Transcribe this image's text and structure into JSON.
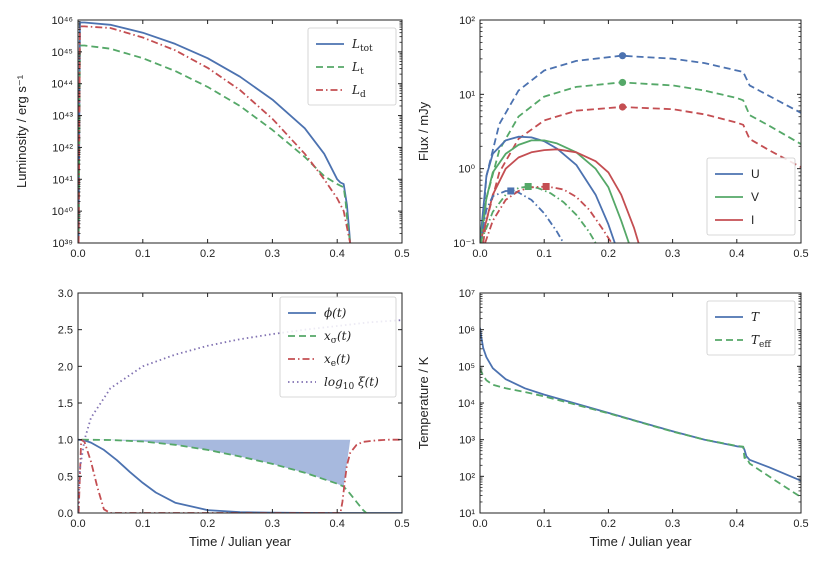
{
  "figure": {
    "panels": 4
  },
  "colors": {
    "blue": "#4c72b0",
    "green": "#55a868",
    "red": "#c44e52",
    "purple": "#8172b2",
    "fill": "#a7b9de"
  },
  "chart_data": [
    {
      "id": "tl",
      "type": "line",
      "ylog": true,
      "xlabel": "",
      "ylabel": "Luminosity / erg s⁻¹",
      "xlim": [
        0,
        0.5
      ],
      "ylim": [
        39,
        46
      ],
      "xticks": [
        0.0,
        0.1,
        0.2,
        0.3,
        0.4,
        0.5
      ],
      "xtick_labels": [
        "0.0",
        "0.1",
        "0.2",
        "0.3",
        "0.4",
        "0.5"
      ],
      "yticks": [
        39,
        40,
        41,
        42,
        43,
        44,
        45,
        46
      ],
      "ytick_labels": [
        "10³⁹",
        "10⁴⁰",
        "10⁴¹",
        "10⁴²",
        "10⁴³",
        "10⁴⁴",
        "10⁴⁵",
        "10⁴⁶"
      ],
      "legend": {
        "position": "top-right",
        "entries": [
          {
            "key": "Ltot",
            "label": "L",
            "sub": "tot",
            "color": "#4c72b0",
            "dash": "solid"
          },
          {
            "key": "Lt",
            "label": "L",
            "sub": "t",
            "color": "#55a868",
            "dash": "dashed"
          },
          {
            "key": "Ld",
            "label": "L",
            "sub": "d",
            "color": "#c44e52",
            "dash": "dashdot"
          }
        ]
      },
      "series": [
        {
          "name": "Ltot",
          "color": "#4c72b0",
          "dash": "solid",
          "x": [
            0.001,
            0.003,
            0.01,
            0.05,
            0.1,
            0.15,
            0.2,
            0.25,
            0.3,
            0.35,
            0.38,
            0.4,
            0.405,
            0.41,
            0.415,
            0.418,
            0.42
          ],
          "y": [
            39,
            45.92,
            45.92,
            45.85,
            45.6,
            45.25,
            44.8,
            44.22,
            43.5,
            42.6,
            41.8,
            41.0,
            40.9,
            40.85,
            40.2,
            39.5,
            39
          ]
        },
        {
          "name": "Lt",
          "color": "#55a868",
          "dash": "dashed",
          "x": [
            0.001,
            0.003,
            0.01,
            0.05,
            0.1,
            0.15,
            0.2,
            0.25,
            0.3,
            0.35,
            0.38,
            0.4,
            0.405,
            0.41,
            0.413,
            0.416,
            0.42
          ],
          "y": [
            39,
            45.2,
            45.2,
            45.1,
            44.8,
            44.4,
            43.9,
            43.3,
            42.55,
            41.7,
            41.1,
            40.85,
            40.8,
            40.75,
            40.3,
            39.6,
            39
          ]
        },
        {
          "name": "Ld",
          "color": "#c44e52",
          "dash": "dashdot",
          "x": [
            0.001,
            0.003,
            0.01,
            0.05,
            0.1,
            0.15,
            0.2,
            0.25,
            0.3,
            0.35,
            0.38,
            0.4,
            0.41,
            0.415,
            0.42
          ],
          "y": [
            39,
            45.8,
            45.8,
            45.75,
            45.45,
            45.05,
            44.5,
            43.8,
            42.9,
            41.8,
            41.0,
            40.4,
            40.0,
            39.5,
            39
          ]
        }
      ]
    },
    {
      "id": "tr",
      "type": "line",
      "ylog": true,
      "xlabel": "",
      "ylabel": "Flux / mJy",
      "xlim": [
        0,
        0.5
      ],
      "ylim": [
        -1,
        2
      ],
      "xticks": [
        0.0,
        0.1,
        0.2,
        0.3,
        0.4,
        0.5
      ],
      "xtick_labels": [
        "0.0",
        "0.1",
        "0.2",
        "0.3",
        "0.4",
        "0.5"
      ],
      "yticks": [
        -1,
        0,
        1,
        2
      ],
      "ytick_labels": [
        "10⁻¹",
        "10⁰",
        "10¹",
        "10²"
      ],
      "legend": {
        "position": "lower-right",
        "entries": [
          {
            "key": "U",
            "label": "U",
            "color": "#4c72b0",
            "dash": "solid"
          },
          {
            "key": "V",
            "label": "V",
            "color": "#55a868",
            "dash": "solid"
          },
          {
            "key": "I",
            "label": "I",
            "color": "#c44e52",
            "dash": "solid"
          }
        ]
      },
      "series": [
        {
          "name": "U-dashed",
          "color": "#4c72b0",
          "dash": "dashed",
          "x": [
            0.002,
            0.01,
            0.03,
            0.06,
            0.1,
            0.15,
            0.22,
            0.3,
            0.35,
            0.4,
            0.41,
            0.42,
            0.45,
            0.5
          ],
          "y": [
            -1,
            -0.1,
            0.6,
            1.05,
            1.32,
            1.45,
            1.52,
            1.48,
            1.42,
            1.32,
            1.3,
            1.12,
            0.98,
            0.75
          ]
        },
        {
          "name": "V-dashed",
          "color": "#55a868",
          "dash": "dashed",
          "x": [
            0.002,
            0.01,
            0.03,
            0.06,
            0.1,
            0.15,
            0.22,
            0.3,
            0.35,
            0.4,
            0.41,
            0.42,
            0.45,
            0.5
          ],
          "y": [
            -1,
            -0.4,
            0.25,
            0.7,
            0.97,
            1.1,
            1.16,
            1.12,
            1.05,
            0.95,
            0.92,
            0.72,
            0.58,
            0.33
          ]
        },
        {
          "name": "I-dashed",
          "color": "#c44e52",
          "dash": "dashed",
          "x": [
            0.005,
            0.01,
            0.03,
            0.06,
            0.1,
            0.15,
            0.22,
            0.3,
            0.35,
            0.4,
            0.41,
            0.42,
            0.45,
            0.5
          ],
          "y": [
            -1,
            -0.7,
            -0.05,
            0.4,
            0.65,
            0.78,
            0.83,
            0.8,
            0.73,
            0.62,
            0.59,
            0.4,
            0.25,
            0.02
          ]
        },
        {
          "name": "U-solid",
          "color": "#4c72b0",
          "dash": "solid",
          "x": [
            0.0,
            0.01,
            0.02,
            0.04,
            0.06,
            0.08,
            0.1,
            0.12,
            0.15,
            0.18,
            0.2,
            0.21
          ],
          "y": [
            -1,
            -0.1,
            0.2,
            0.38,
            0.43,
            0.42,
            0.37,
            0.27,
            0.05,
            -0.35,
            -0.75,
            -1
          ]
        },
        {
          "name": "V-solid",
          "color": "#55a868",
          "dash": "solid",
          "x": [
            0.0,
            0.01,
            0.02,
            0.04,
            0.06,
            0.08,
            0.1,
            0.12,
            0.15,
            0.18,
            0.2,
            0.22,
            0.232
          ],
          "y": [
            -1,
            -0.4,
            -0.05,
            0.2,
            0.32,
            0.38,
            0.38,
            0.34,
            0.22,
            0.0,
            -0.25,
            -0.7,
            -1
          ]
        },
        {
          "name": "I-solid",
          "color": "#c44e52",
          "dash": "solid",
          "x": [
            0.0,
            0.01,
            0.02,
            0.04,
            0.06,
            0.08,
            0.1,
            0.12,
            0.15,
            0.18,
            0.2,
            0.22,
            0.24,
            0.247
          ],
          "y": [
            -1,
            -0.7,
            -0.35,
            0.0,
            0.15,
            0.22,
            0.25,
            0.26,
            0.22,
            0.1,
            -0.05,
            -0.35,
            -0.8,
            -1
          ]
        },
        {
          "name": "U-dashdot",
          "color": "#4c72b0",
          "dash": "dashdot",
          "x": [
            0.0,
            0.01,
            0.02,
            0.04,
            0.05,
            0.06,
            0.08,
            0.1,
            0.12,
            0.13
          ],
          "y": [
            -1,
            -0.55,
            -0.37,
            -0.3,
            -0.3,
            -0.32,
            -0.42,
            -0.6,
            -0.85,
            -1
          ]
        },
        {
          "name": "V-dashdot",
          "color": "#55a868",
          "dash": "dashdot",
          "x": [
            0.0,
            0.01,
            0.02,
            0.04,
            0.06,
            0.075,
            0.09,
            0.11,
            0.13,
            0.15,
            0.17,
            0.18
          ],
          "y": [
            -1,
            -0.8,
            -0.58,
            -0.35,
            -0.26,
            -0.24,
            -0.26,
            -0.33,
            -0.45,
            -0.62,
            -0.85,
            -1
          ]
        },
        {
          "name": "I-dashdot",
          "color": "#c44e52",
          "dash": "dashdot",
          "x": [
            0.008,
            0.02,
            0.04,
            0.06,
            0.08,
            0.105,
            0.13,
            0.15,
            0.17,
            0.19,
            0.205
          ],
          "y": [
            -1,
            -0.7,
            -0.42,
            -0.3,
            -0.25,
            -0.24,
            -0.28,
            -0.38,
            -0.55,
            -0.8,
            -1
          ]
        }
      ],
      "markers": [
        {
          "x": 0.222,
          "y": 1.52,
          "shape": "circle",
          "color": "#4c72b0"
        },
        {
          "x": 0.222,
          "y": 1.16,
          "shape": "circle",
          "color": "#55a868"
        },
        {
          "x": 0.222,
          "y": 0.83,
          "shape": "circle",
          "color": "#c44e52"
        },
        {
          "x": 0.048,
          "y": -0.3,
          "shape": "square",
          "color": "#4c72b0"
        },
        {
          "x": 0.075,
          "y": -0.24,
          "shape": "square",
          "color": "#55a868"
        },
        {
          "x": 0.103,
          "y": -0.24,
          "shape": "square",
          "color": "#c44e52"
        }
      ]
    },
    {
      "id": "bl",
      "type": "line",
      "ylog": false,
      "xlabel": "Time / Julian year",
      "ylabel": "",
      "xlim": [
        0,
        0.5
      ],
      "ylim": [
        0,
        3.0
      ],
      "xticks": [
        0.0,
        0.1,
        0.2,
        0.3,
        0.4,
        0.5
      ],
      "xtick_labels": [
        "0.0",
        "0.1",
        "0.2",
        "0.3",
        "0.4",
        "0.5"
      ],
      "yticks": [
        0.0,
        0.5,
        1.0,
        1.5,
        2.0,
        2.5,
        3.0
      ],
      "ytick_labels": [
        "0.0",
        "0.5",
        "1.0",
        "1.5",
        "2.0",
        "2.5",
        "3.0"
      ],
      "legend": {
        "position": "top-right",
        "entries": [
          {
            "key": "phi",
            "label": "ϕ(t)",
            "color": "#4c72b0",
            "dash": "solid"
          },
          {
            "key": "xs",
            "label": "x",
            "sub": "σ",
            "after": "(t)",
            "color": "#55a868",
            "dash": "dashed"
          },
          {
            "key": "xe",
            "label": "x",
            "sub": "e",
            "after": "(t)",
            "color": "#c44e52",
            "dash": "dashdot"
          },
          {
            "key": "logxi",
            "label": "log",
            "sub": "10",
            "after": " ξ(t)",
            "color": "#8172b2",
            "dash": "dotted"
          }
        ]
      },
      "fill": {
        "x": [
          0.006,
          0.05,
          0.1,
          0.15,
          0.2,
          0.25,
          0.3,
          0.35,
          0.38,
          0.4,
          0.41,
          0.42,
          0.44,
          0.46,
          0.48,
          0.5
        ],
        "y_low": [
          1.0,
          0.995,
          0.975,
          0.93,
          0.86,
          0.77,
          0.67,
          0.55,
          0.46,
          0.4,
          0.36,
          1.0,
          1.0,
          1.0,
          1.0,
          1.0
        ],
        "y_high": 1.0,
        "color": "#a7b9de"
      },
      "series": [
        {
          "name": "phi",
          "color": "#4c72b0",
          "dash": "solid",
          "x": [
            0.0,
            0.01,
            0.02,
            0.04,
            0.06,
            0.08,
            0.1,
            0.12,
            0.15,
            0.2,
            0.25,
            0.3,
            0.35,
            0.4,
            0.45,
            0.5
          ],
          "y": [
            1.0,
            0.99,
            0.96,
            0.86,
            0.72,
            0.56,
            0.41,
            0.28,
            0.14,
            0.04,
            0.012,
            0.004,
            0.001,
            0.0,
            0.0,
            0.0
          ]
        },
        {
          "name": "xs",
          "color": "#55a868",
          "dash": "dashed",
          "x": [
            0.006,
            0.05,
            0.1,
            0.15,
            0.2,
            0.25,
            0.3,
            0.35,
            0.38,
            0.4,
            0.41,
            0.42,
            0.43,
            0.44,
            0.445
          ],
          "y": [
            1.0,
            0.995,
            0.975,
            0.93,
            0.86,
            0.77,
            0.67,
            0.55,
            0.46,
            0.4,
            0.36,
            0.26,
            0.15,
            0.04,
            0.0
          ]
        },
        {
          "name": "xe",
          "color": "#c44e52",
          "dash": "dashdot",
          "x": [
            0.001,
            0.005,
            0.01,
            0.02,
            0.03,
            0.04,
            0.05,
            0.405,
            0.408,
            0.412,
            0.415,
            0.42,
            0.43,
            0.44,
            0.46,
            0.48,
            0.5
          ],
          "y": [
            0.0,
            1.0,
            0.97,
            0.7,
            0.35,
            0.05,
            0.0,
            0.0,
            0.15,
            0.45,
            0.65,
            0.82,
            0.93,
            0.97,
            0.99,
            1.0,
            1.0
          ]
        },
        {
          "name": "logxi",
          "color": "#8172b2",
          "dash": "dotted",
          "x": [
            0.0,
            0.003,
            0.01,
            0.02,
            0.05,
            0.1,
            0.15,
            0.2,
            0.25,
            0.3,
            0.35,
            0.4,
            0.45,
            0.5
          ],
          "y": [
            0.0,
            0.6,
            1.0,
            1.3,
            1.7,
            2.0,
            2.16,
            2.28,
            2.37,
            2.44,
            2.5,
            2.55,
            2.6,
            2.63
          ]
        }
      ]
    },
    {
      "id": "br",
      "type": "line",
      "ylog": true,
      "xlabel": "Time / Julian year",
      "ylabel": "Temperature / K",
      "xlim": [
        0,
        0.5
      ],
      "ylim": [
        1,
        7
      ],
      "xticks": [
        0.0,
        0.1,
        0.2,
        0.3,
        0.4,
        0.5
      ],
      "xtick_labels": [
        "0.0",
        "0.1",
        "0.2",
        "0.3",
        "0.4",
        "0.5"
      ],
      "yticks": [
        1,
        2,
        3,
        4,
        5,
        6,
        7
      ],
      "ytick_labels": [
        "10¹",
        "10²",
        "10³",
        "10⁴",
        "10⁵",
        "10⁶",
        "10⁷"
      ],
      "legend": {
        "position": "top-right",
        "entries": [
          {
            "key": "T",
            "label": "T",
            "color": "#4c72b0",
            "dash": "solid"
          },
          {
            "key": "Teff",
            "label": "T",
            "sub": "eff",
            "color": "#55a868",
            "dash": "dashed"
          }
        ]
      },
      "series": [
        {
          "name": "T",
          "color": "#4c72b0",
          "dash": "solid",
          "x": [
            0.0,
            0.002,
            0.005,
            0.01,
            0.02,
            0.04,
            0.07,
            0.1,
            0.15,
            0.2,
            0.25,
            0.3,
            0.35,
            0.4,
            0.41,
            0.412,
            0.415,
            0.42,
            0.45,
            0.5
          ],
          "y": [
            6.05,
            5.8,
            5.5,
            5.25,
            4.95,
            4.65,
            4.4,
            4.23,
            3.98,
            3.73,
            3.48,
            3.23,
            3.0,
            2.82,
            2.8,
            2.72,
            2.55,
            2.45,
            2.25,
            1.88
          ]
        },
        {
          "name": "Teff",
          "color": "#55a868",
          "dash": "dashed",
          "x": [
            0.0,
            0.002,
            0.005,
            0.01,
            0.02,
            0.04,
            0.07,
            0.1,
            0.15,
            0.2,
            0.25,
            0.3,
            0.35,
            0.4,
            0.41,
            0.412,
            0.415,
            0.42,
            0.45,
            0.5
          ],
          "y": [
            4.95,
            4.85,
            4.75,
            4.62,
            4.5,
            4.4,
            4.3,
            4.18,
            3.95,
            3.72,
            3.47,
            3.22,
            3.0,
            2.83,
            2.81,
            2.5,
            2.52,
            2.35,
            2.0,
            1.43
          ]
        }
      ]
    }
  ]
}
